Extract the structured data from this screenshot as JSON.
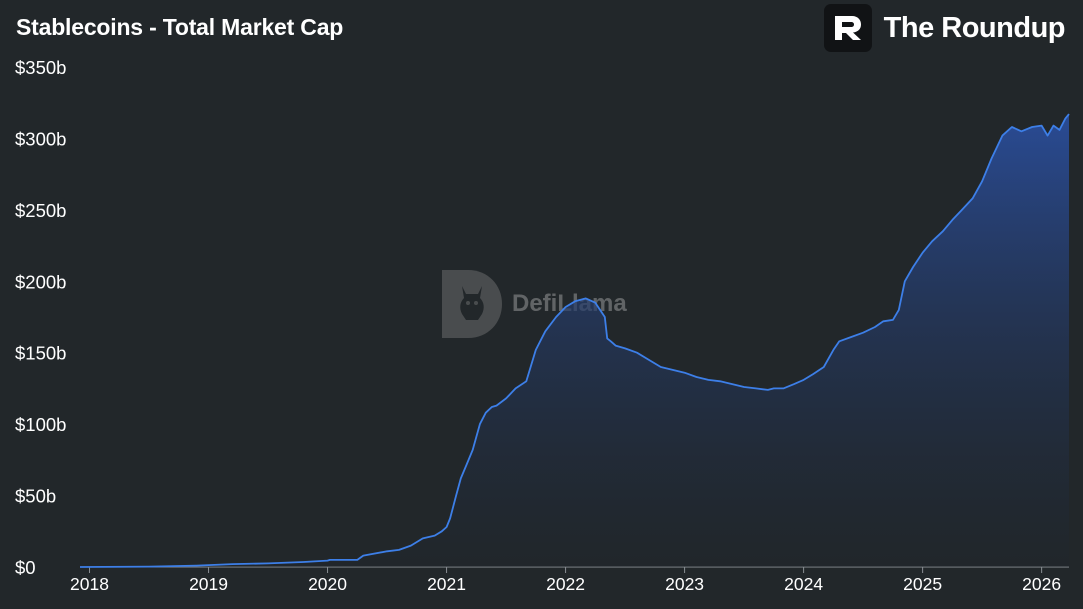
{
  "title": "Stablecoins - Total Market Cap",
  "brand": {
    "name": "The Roundup",
    "logo_icon": "roundup-r-logo-icon"
  },
  "watermark": {
    "text": "DefiLlama",
    "icon": "llama-logo-icon"
  },
  "colors": {
    "background": "#22272a",
    "line": "#3d7fe8",
    "area_top": "#2a4d9a",
    "area_bottom": "#1e252c"
  },
  "chart_data": {
    "type": "area",
    "title": "Stablecoins - Total Market Cap",
    "xlabel": "",
    "ylabel": "",
    "y_unit": "$b",
    "xlim": [
      2017.92,
      2026.23
    ],
    "ylim": [
      0,
      350
    ],
    "y_ticks": [
      0,
      50,
      100,
      150,
      200,
      250,
      300,
      350
    ],
    "y_tick_labels": [
      "$0",
      "$50b",
      "$100b",
      "$150b",
      "$200b",
      "$250b",
      "$300b",
      "$350b"
    ],
    "x_ticks": [
      2018,
      2019,
      2020,
      2021,
      2022,
      2023,
      2024,
      2025,
      2026
    ],
    "x_tick_labels": [
      "2018",
      "2019",
      "2020",
      "2021",
      "2022",
      "2023",
      "2024",
      "2025",
      "2026"
    ],
    "grid": false,
    "legend": "none",
    "series": [
      {
        "x": [
          2017.92,
          2018.5,
          2018.9,
          2019.2,
          2019.5,
          2019.8,
          2020.0,
          2020.02,
          2020.25,
          2020.3,
          2020.5,
          2020.6,
          2020.7,
          2020.8,
          2020.9,
          2020.96,
          2021.0,
          2021.03,
          2021.08,
          2021.12,
          2021.17,
          2021.22,
          2021.28,
          2021.33,
          2021.38,
          2021.42,
          2021.5,
          2021.58,
          2021.67,
          2021.75,
          2021.83,
          2021.92,
          2022.0,
          2022.08,
          2022.17,
          2022.25,
          2022.33,
          2022.35,
          2022.38,
          2022.42,
          2022.5,
          2022.6,
          2022.7,
          2022.8,
          2022.9,
          2023.0,
          2023.1,
          2023.2,
          2023.3,
          2023.4,
          2023.5,
          2023.6,
          2023.7,
          2023.75,
          2023.83,
          2023.92,
          2024.0,
          2024.08,
          2024.17,
          2024.25,
          2024.3,
          2024.4,
          2024.5,
          2024.6,
          2024.67,
          2024.75,
          2024.8,
          2024.85,
          2024.92,
          2025.0,
          2025.08,
          2025.17,
          2025.25,
          2025.33,
          2025.42,
          2025.5,
          2025.58,
          2025.67,
          2025.75,
          2025.83,
          2025.92,
          2026.0,
          2026.05,
          2026.1,
          2026.15,
          2026.2,
          2026.23
        ],
        "y": [
          0,
          0.3,
          1,
          2,
          2.5,
          3.5,
          4.5,
          5,
          5,
          8,
          11,
          12,
          15,
          20,
          22,
          25,
          28,
          34,
          50,
          62,
          72,
          82,
          100,
          108,
          112,
          113,
          118,
          125,
          130,
          152,
          165,
          175,
          182,
          186,
          188,
          185,
          175,
          160,
          158,
          155,
          153,
          150,
          145,
          140,
          138,
          136,
          133,
          131,
          130,
          128,
          126,
          125,
          124,
          125,
          125,
          128,
          131,
          135,
          140,
          152,
          158,
          161,
          164,
          168,
          172,
          173,
          180,
          200,
          210,
          220,
          228,
          235,
          243,
          250,
          258,
          270,
          286,
          302,
          308,
          305,
          308,
          309,
          302,
          309,
          306,
          314,
          317
        ]
      }
    ]
  }
}
